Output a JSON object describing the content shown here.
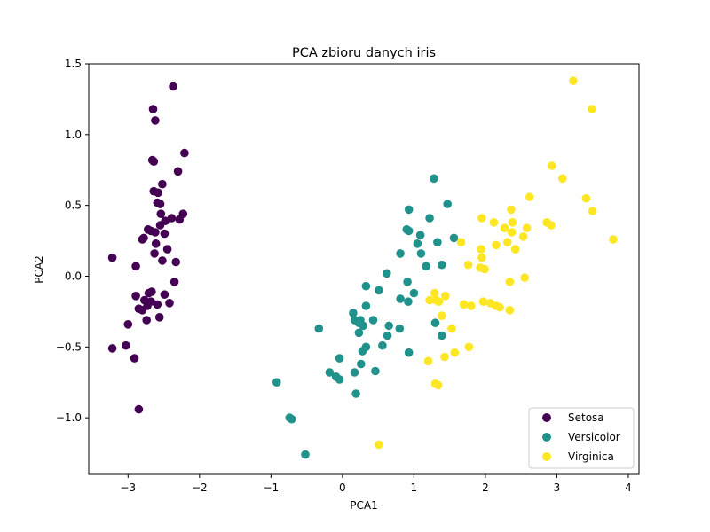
{
  "chart_data": {
    "type": "scatter",
    "title": "PCA zbioru danych iris",
    "xlabel": "PCA1",
    "ylabel": "PCA2",
    "xlim": [
      -3.55,
      4.15
    ],
    "ylim": [
      -1.4,
      1.5
    ],
    "xticks": [
      -3,
      -2,
      -1,
      0,
      1,
      2,
      3,
      4
    ],
    "yticks": [
      -1.0,
      -0.5,
      0.0,
      0.5,
      1.0,
      1.5
    ],
    "xtick_labels": [
      "−3",
      "−2",
      "−1",
      "0",
      "1",
      "2",
      "3",
      "4"
    ],
    "ytick_labels": [
      "−1.0",
      "−0.5",
      "0.0",
      "0.5",
      "1.0",
      "1.5"
    ],
    "grid": false,
    "legend_position": "lower-right",
    "series": [
      {
        "name": "Setosa",
        "color": "#440154",
        "points": [
          [
            -2.37,
            1.34
          ],
          [
            -2.65,
            1.18
          ],
          [
            -2.62,
            1.1
          ],
          [
            -2.21,
            0.87
          ],
          [
            -2.66,
            0.82
          ],
          [
            -2.64,
            0.81
          ],
          [
            -2.3,
            0.74
          ],
          [
            -2.52,
            0.65
          ],
          [
            -2.64,
            0.6
          ],
          [
            -2.58,
            0.59
          ],
          [
            -2.59,
            0.52
          ],
          [
            -2.55,
            0.51
          ],
          [
            -2.23,
            0.44
          ],
          [
            -2.54,
            0.44
          ],
          [
            -2.39,
            0.41
          ],
          [
            -2.28,
            0.4
          ],
          [
            -2.48,
            0.39
          ],
          [
            -2.55,
            0.36
          ],
          [
            -2.72,
            0.33
          ],
          [
            -2.68,
            0.32
          ],
          [
            -2.62,
            0.31
          ],
          [
            -2.49,
            0.3
          ],
          [
            -2.78,
            0.27
          ],
          [
            -2.8,
            0.26
          ],
          [
            -2.61,
            0.23
          ],
          [
            -2.45,
            0.19
          ],
          [
            -2.63,
            0.16
          ],
          [
            -2.33,
            0.1
          ],
          [
            -2.52,
            0.11
          ],
          [
            -2.89,
            0.07
          ],
          [
            -3.22,
            0.13
          ],
          [
            -2.35,
            -0.04
          ],
          [
            -2.67,
            -0.11
          ],
          [
            -2.71,
            -0.12
          ],
          [
            -2.89,
            -0.14
          ],
          [
            -2.49,
            -0.13
          ],
          [
            -2.77,
            -0.17
          ],
          [
            -2.68,
            -0.18
          ],
          [
            -2.59,
            -0.2
          ],
          [
            -2.85,
            -0.23
          ],
          [
            -2.73,
            -0.21
          ],
          [
            -2.8,
            -0.24
          ],
          [
            -2.74,
            -0.31
          ],
          [
            -3.0,
            -0.34
          ],
          [
            -3.03,
            -0.49
          ],
          [
            -3.22,
            -0.51
          ],
          [
            -2.91,
            -0.58
          ],
          [
            -2.85,
            -0.94
          ],
          [
            -2.56,
            -0.29
          ],
          [
            -2.42,
            -0.19
          ]
        ]
      },
      {
        "name": "Versicolor",
        "color": "#21918c",
        "points": [
          [
            1.28,
            0.69
          ],
          [
            1.47,
            0.51
          ],
          [
            0.93,
            0.47
          ],
          [
            1.22,
            0.41
          ],
          [
            0.9,
            0.33
          ],
          [
            0.93,
            0.32
          ],
          [
            1.09,
            0.29
          ],
          [
            1.56,
            0.27
          ],
          [
            1.33,
            0.24
          ],
          [
            1.05,
            0.23
          ],
          [
            0.81,
            0.16
          ],
          [
            1.1,
            0.16
          ],
          [
            1.39,
            0.08
          ],
          [
            1.17,
            0.07
          ],
          [
            0.62,
            0.02
          ],
          [
            0.91,
            -0.04
          ],
          [
            0.33,
            -0.07
          ],
          [
            0.51,
            -0.1
          ],
          [
            1.0,
            -0.12
          ],
          [
            0.81,
            -0.16
          ],
          [
            0.92,
            -0.18
          ],
          [
            0.15,
            -0.26
          ],
          [
            0.33,
            -0.21
          ],
          [
            0.17,
            -0.31
          ],
          [
            0.25,
            -0.31
          ],
          [
            0.43,
            -0.31
          ],
          [
            0.23,
            -0.33
          ],
          [
            0.29,
            -0.35
          ],
          [
            0.65,
            -0.35
          ],
          [
            -0.33,
            -0.37
          ],
          [
            0.8,
            -0.37
          ],
          [
            1.3,
            -0.33
          ],
          [
            0.63,
            -0.42
          ],
          [
            1.39,
            -0.42
          ],
          [
            0.23,
            -0.4
          ],
          [
            0.56,
            -0.49
          ],
          [
            0.33,
            -0.5
          ],
          [
            0.28,
            -0.53
          ],
          [
            0.93,
            -0.54
          ],
          [
            -0.04,
            -0.58
          ],
          [
            0.26,
            -0.62
          ],
          [
            -0.18,
            -0.68
          ],
          [
            0.17,
            -0.68
          ],
          [
            0.46,
            -0.67
          ],
          [
            -0.09,
            -0.71
          ],
          [
            -0.04,
            -0.73
          ],
          [
            -0.92,
            -0.75
          ],
          [
            0.19,
            -0.83
          ],
          [
            -0.74,
            -1.0
          ],
          [
            -0.71,
            -1.01
          ],
          [
            -0.52,
            -1.26
          ]
        ]
      },
      {
        "name": "Virginica",
        "color": "#fde725",
        "points": [
          [
            3.23,
            1.38
          ],
          [
            3.49,
            1.18
          ],
          [
            2.93,
            0.78
          ],
          [
            3.08,
            0.69
          ],
          [
            2.62,
            0.56
          ],
          [
            3.41,
            0.55
          ],
          [
            2.36,
            0.47
          ],
          [
            3.5,
            0.46
          ],
          [
            1.95,
            0.41
          ],
          [
            2.12,
            0.38
          ],
          [
            2.38,
            0.38
          ],
          [
            2.86,
            0.38
          ],
          [
            2.92,
            0.36
          ],
          [
            2.58,
            0.34
          ],
          [
            2.27,
            0.34
          ],
          [
            2.37,
            0.31
          ],
          [
            2.53,
            0.28
          ],
          [
            3.79,
            0.26
          ],
          [
            1.66,
            0.24
          ],
          [
            2.31,
            0.24
          ],
          [
            2.15,
            0.22
          ],
          [
            1.94,
            0.19
          ],
          [
            2.42,
            0.19
          ],
          [
            1.95,
            0.13
          ],
          [
            1.76,
            0.08
          ],
          [
            1.93,
            0.06
          ],
          [
            1.99,
            0.05
          ],
          [
            2.55,
            -0.01
          ],
          [
            2.34,
            -0.04
          ],
          [
            1.29,
            -0.12
          ],
          [
            1.44,
            -0.14
          ],
          [
            1.22,
            -0.17
          ],
          [
            1.31,
            -0.17
          ],
          [
            1.97,
            -0.18
          ],
          [
            1.8,
            -0.21
          ],
          [
            2.15,
            -0.21
          ],
          [
            2.2,
            -0.22
          ],
          [
            2.34,
            -0.24
          ],
          [
            1.39,
            -0.28
          ],
          [
            1.53,
            -0.37
          ],
          [
            1.77,
            -0.5
          ],
          [
            1.57,
            -0.54
          ],
          [
            1.43,
            -0.57
          ],
          [
            1.2,
            -0.6
          ],
          [
            1.3,
            -0.76
          ],
          [
            1.34,
            -0.77
          ],
          [
            0.51,
            -1.19
          ],
          [
            1.35,
            -0.18
          ],
          [
            1.7,
            -0.2
          ],
          [
            2.07,
            -0.19
          ]
        ]
      }
    ]
  }
}
